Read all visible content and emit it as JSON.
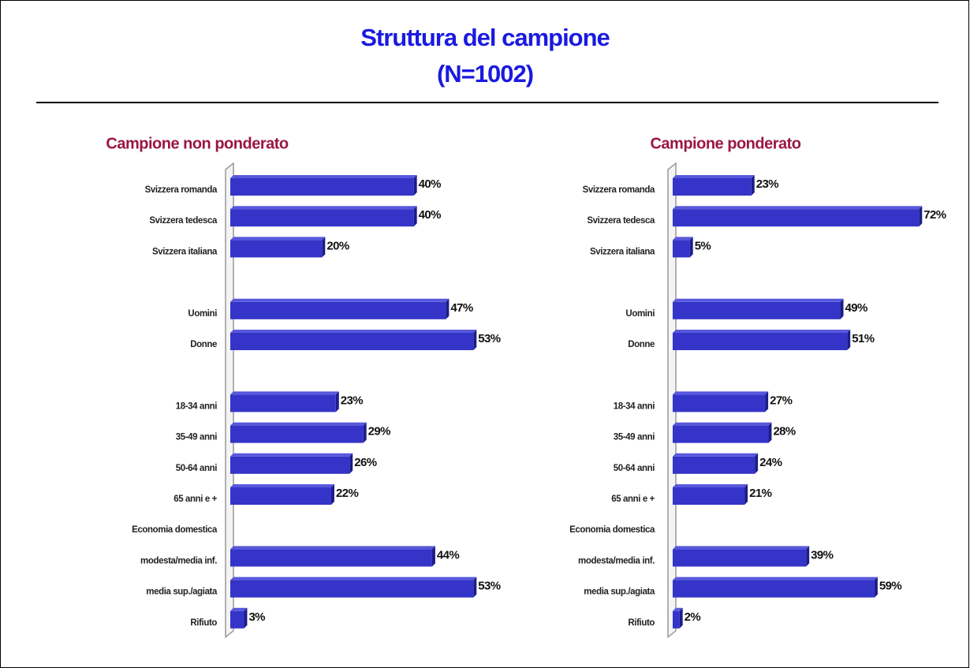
{
  "title": "Struttura del campione",
  "subtitle": "(N=1002)",
  "chart_data": [
    {
      "type": "bar",
      "orientation": "horizontal",
      "title": "Campione non ponderato",
      "categories": [
        "Svizzera romanda",
        "Svizzera tedesca",
        "Svizzera italiana",
        null,
        "Uomini",
        "Donne",
        null,
        "18-34 anni",
        "35-49 anni",
        "50-64 anni",
        "65 anni e +",
        "Economia domestica",
        "modesta/media inf.",
        "media sup./agiata",
        "Rifiuto"
      ],
      "values": [
        40,
        40,
        20,
        null,
        47,
        53,
        null,
        23,
        29,
        26,
        22,
        null,
        44,
        53,
        3
      ],
      "value_labels": [
        "40%",
        "40%",
        "20%",
        null,
        "47%",
        "53%",
        null,
        "23%",
        "29%",
        "26%",
        "22%",
        null,
        "44%",
        "53%",
        "3%"
      ],
      "color": "#3434c8",
      "xlim": [
        0,
        60
      ]
    },
    {
      "type": "bar",
      "orientation": "horizontal",
      "title": "Campione ponderato",
      "categories": [
        "Svizzera romanda",
        "Svizzera tedesca",
        "Svizzera italiana",
        null,
        "Uomini",
        "Donne",
        null,
        "18-34 anni",
        "35-49 anni",
        "50-64 anni",
        "65 anni e +",
        "Economia domestica",
        "modesta/media inf.",
        "media sup./agiata",
        "Rifiuto"
      ],
      "values": [
        23,
        72,
        5,
        null,
        49,
        51,
        null,
        27,
        28,
        24,
        21,
        null,
        39,
        59,
        2
      ],
      "value_labels": [
        "23%",
        "72%",
        "5%",
        null,
        "49%",
        "51%",
        null,
        "27%",
        "28%",
        "24%",
        "21%",
        null,
        "39%",
        "59%",
        "2%"
      ],
      "color": "#3434c8",
      "xlim": [
        0,
        80
      ]
    }
  ]
}
